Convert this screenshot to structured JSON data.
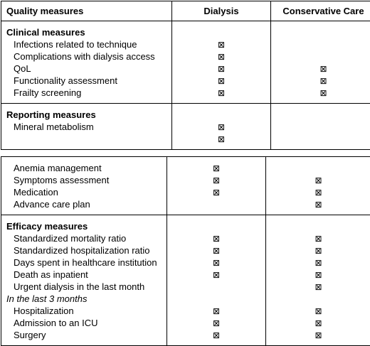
{
  "header": {
    "col1": "Quality measures",
    "col2": "Dialysis",
    "col3": "Conservative Care"
  },
  "check_symbol": "⊠",
  "clinical": {
    "title": "Clinical measures",
    "items": [
      {
        "label": "Infections related to technique",
        "dialysis": true,
        "conservative": false
      },
      {
        "label": "Complications with dialysis access",
        "dialysis": true,
        "conservative": false
      },
      {
        "label": "QoL",
        "dialysis": true,
        "conservative": true
      },
      {
        "label": "Functionality assessment",
        "dialysis": true,
        "conservative": true
      },
      {
        "label": "Frailty screening",
        "dialysis": true,
        "conservative": true
      }
    ]
  },
  "reporting": {
    "title": "Reporting measures",
    "items": [
      {
        "label": "Mineral metabolism",
        "dialysis": true,
        "conservative": false
      },
      {
        "label": "",
        "dialysis": true,
        "conservative": false
      }
    ]
  },
  "reporting_cont": {
    "items": [
      {
        "label": "Anemia management",
        "dialysis": true,
        "conservative": false
      },
      {
        "label": "Symptoms assessment",
        "dialysis": true,
        "conservative": true
      },
      {
        "label": "Medication",
        "dialysis": true,
        "conservative": true
      },
      {
        "label": "Advance care plan",
        "dialysis": false,
        "conservative": true
      }
    ]
  },
  "efficacy": {
    "title": "Efficacy measures",
    "items": [
      {
        "label": "Standardized mortality ratio",
        "dialysis": true,
        "conservative": true
      },
      {
        "label": "Standardized hospitalization ratio",
        "dialysis": true,
        "conservative": true
      },
      {
        "label": "Days spent in healthcare institution",
        "dialysis": true,
        "conservative": true
      },
      {
        "label": "Death as inpatient",
        "dialysis": true,
        "conservative": true
      },
      {
        "label": "Urgent dialysis in the last month",
        "dialysis": false,
        "conservative": true
      }
    ],
    "subheading": "In the last 3 months",
    "sub_items": [
      {
        "label": "Hospitalization",
        "dialysis": true,
        "conservative": true
      },
      {
        "label": "Admission to an ICU",
        "dialysis": true,
        "conservative": true
      },
      {
        "label": "Surgery",
        "dialysis": true,
        "conservative": true
      }
    ]
  }
}
